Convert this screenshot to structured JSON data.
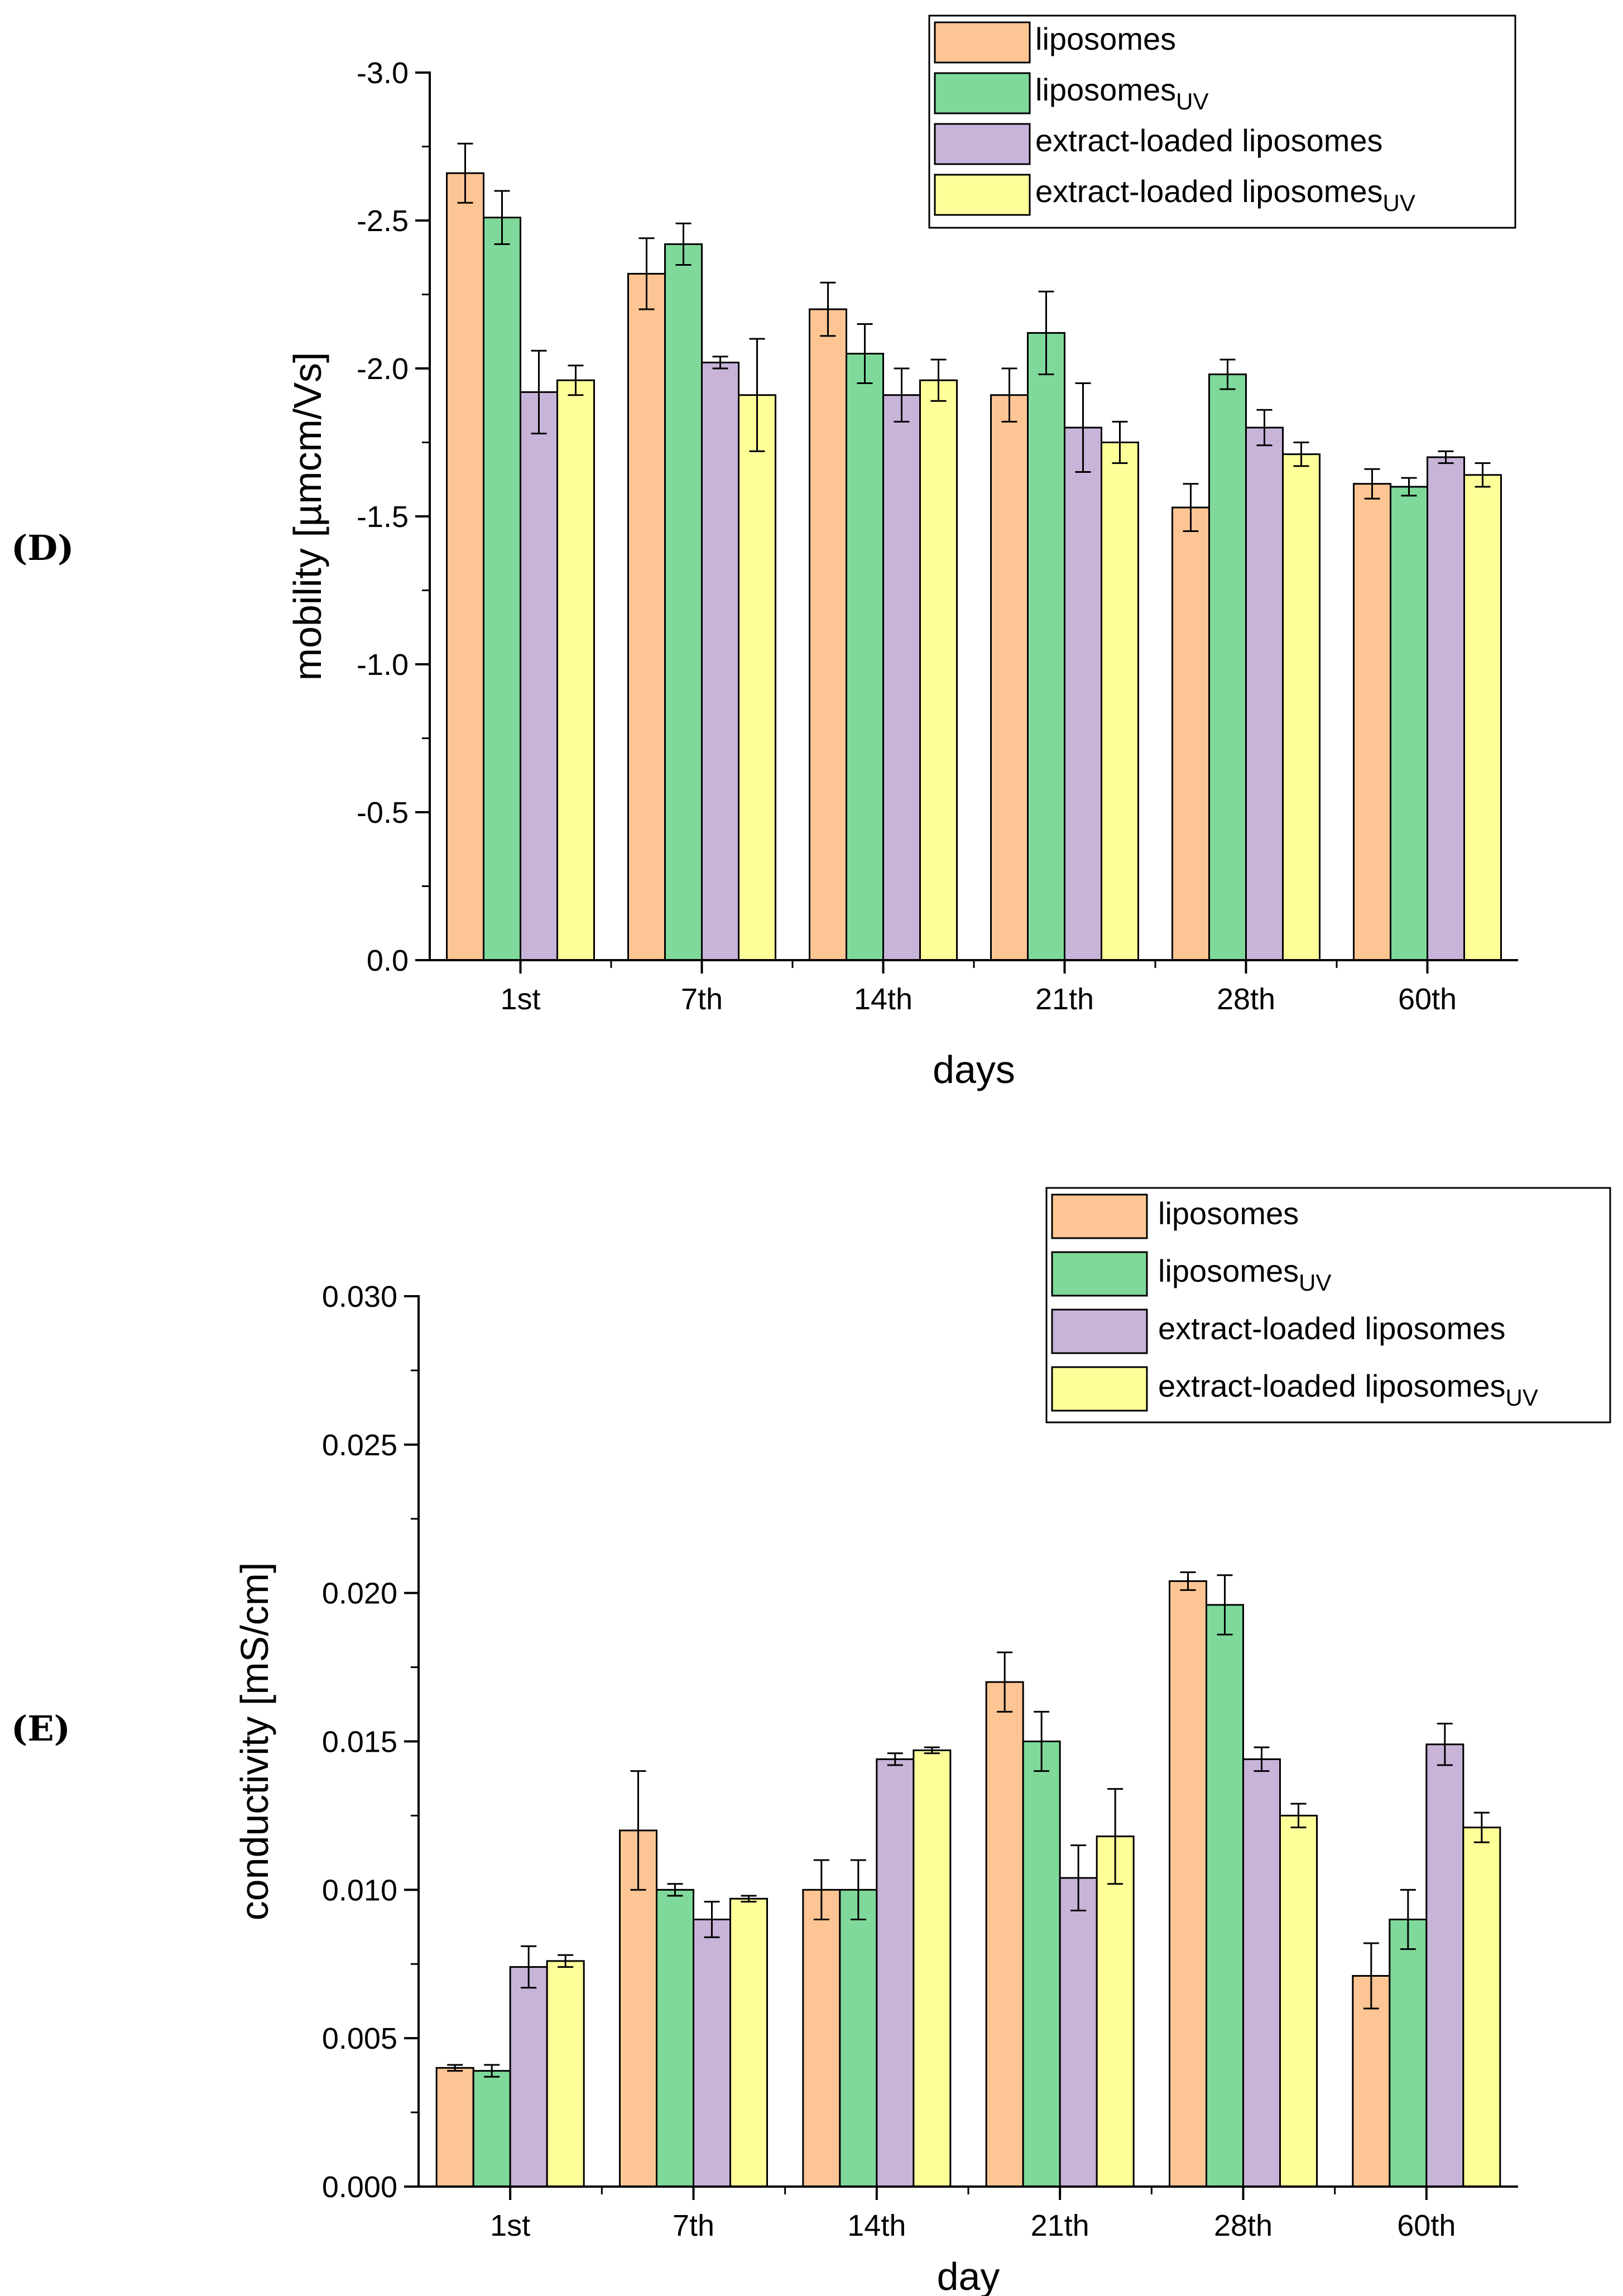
{
  "panels": [
    {
      "label": "(D)",
      "chart_data": {
        "type": "bar",
        "title": "",
        "xlabel": "days",
        "ylabel": "mobility [µmcm/Vs]",
        "ylim": [
          0,
          -3.0
        ],
        "y_axis_inverted": true,
        "yticks": [
          0.0,
          -0.5,
          -1.0,
          -1.5,
          -2.0,
          -2.5,
          -3.0
        ],
        "ytick_labels": [
          "0.0",
          "-0.5",
          "-1.0",
          "-1.5",
          "-2.0",
          "-2.5",
          "-3.0"
        ],
        "categories": [
          "1st",
          "7th",
          "14th",
          "21th",
          "28th",
          "60th"
        ],
        "legend_position": "top-right",
        "series": [
          {
            "name": "liposomes",
            "color": "#fdc593",
            "values": [
              -2.66,
              -2.32,
              -2.2,
              -1.91,
              -1.53,
              -1.61
            ],
            "errors": [
              0.1,
              0.12,
              0.09,
              0.09,
              0.08,
              0.05
            ]
          },
          {
            "name": "liposomesUV",
            "name_main": "liposomes",
            "name_sub": "UV",
            "color": "#7fd99b",
            "values": [
              -2.51,
              -2.42,
              -2.05,
              -2.12,
              -1.98,
              -1.6
            ],
            "errors": [
              0.09,
              0.07,
              0.1,
              0.14,
              0.05,
              0.03
            ]
          },
          {
            "name": "extract-loaded liposomes",
            "color": "#c8b3d9",
            "values": [
              -1.92,
              -2.02,
              -1.91,
              -1.8,
              -1.8,
              -1.7
            ],
            "errors": [
              0.14,
              0.02,
              0.09,
              0.15,
              0.06,
              0.02
            ]
          },
          {
            "name": "extract-loaded liposomesUV",
            "name_main": "extract-loaded liposomes",
            "name_sub": "UV",
            "color": "#ffff9a",
            "values": [
              -1.96,
              -1.91,
              -1.96,
              -1.75,
              -1.71,
              -1.64
            ],
            "errors": [
              0.05,
              0.19,
              0.07,
              0.07,
              0.04,
              0.04
            ]
          }
        ]
      }
    },
    {
      "label": "(E)",
      "chart_data": {
        "type": "bar",
        "title": "",
        "xlabel": "day",
        "ylabel": "conductivity [mS/cm]",
        "ylim": [
          0.0,
          0.03
        ],
        "yticks": [
          0.0,
          0.005,
          0.01,
          0.015,
          0.02,
          0.025,
          0.03
        ],
        "ytick_labels": [
          "0.000",
          "0.005",
          "0.010",
          "0.015",
          "0.020",
          "0.025",
          "0.030"
        ],
        "categories": [
          "1st",
          "7th",
          "14th",
          "21th",
          "28th",
          "60th"
        ],
        "legend_position": "top-right",
        "series": [
          {
            "name": "liposomes",
            "color": "#fdc593",
            "values": [
              0.004,
              0.012,
              0.01,
              0.017,
              0.0204,
              0.0071
            ],
            "errors": [
              0.0001,
              0.002,
              0.001,
              0.001,
              0.0003,
              0.0011
            ]
          },
          {
            "name": "liposomesUV",
            "name_main": "liposomes",
            "name_sub": "UV",
            "color": "#7fd99b",
            "values": [
              0.0039,
              0.01,
              0.01,
              0.015,
              0.0196,
              0.009
            ],
            "errors": [
              0.0002,
              0.0002,
              0.001,
              0.001,
              0.001,
              0.001
            ]
          },
          {
            "name": "extract-loaded liposomes",
            "color": "#c8b3d9",
            "values": [
              0.0074,
              0.009,
              0.0144,
              0.0104,
              0.0144,
              0.0149
            ],
            "errors": [
              0.0007,
              0.0006,
              0.0002,
              0.0011,
              0.0004,
              0.0007
            ]
          },
          {
            "name": "extract-loaded liposomesUV",
            "name_main": "extract-loaded liposomes",
            "name_sub": "UV",
            "color": "#ffff9a",
            "values": [
              0.0076,
              0.0097,
              0.0147,
              0.0118,
              0.0125,
              0.0121
            ],
            "errors": [
              0.0002,
              0.0001,
              0.0001,
              0.0016,
              0.0004,
              0.0005
            ]
          }
        ]
      }
    }
  ]
}
